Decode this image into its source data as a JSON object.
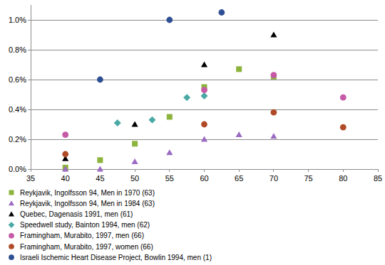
{
  "chart_data": {
    "type": "scatter",
    "xlim": [
      35,
      85
    ],
    "xticks": [
      35,
      40,
      45,
      50,
      55,
      60,
      65,
      70,
      75,
      80,
      85
    ],
    "ylim": [
      0,
      1.1
    ],
    "yticks": [
      {
        "value": 0,
        "label": "0.0%"
      },
      {
        "value": 0.2,
        "label": "0.2%"
      },
      {
        "value": 0.4,
        "label": "0.4%"
      },
      {
        "value": 0.6,
        "label": "0.6%"
      },
      {
        "value": 0.8,
        "label": "0.8%"
      },
      {
        "value": 1.0,
        "label": "1.0%"
      }
    ],
    "grid": true,
    "legend": "bottom",
    "series": [
      {
        "name": "Reykjavik, Ingolfsson 94, Men in 1970 (63)",
        "color": "#8cb43c",
        "marker": "square",
        "x": [
          40,
          45,
          50,
          55,
          60,
          65,
          70
        ],
        "values": [
          0.01,
          0.06,
          0.17,
          0.35,
          0.55,
          0.67,
          0.62
        ]
      },
      {
        "name": "Reykjavik, Ingolfsson 94, Men in 1984 (63)",
        "color": "#9b6bc4",
        "marker": "triangle",
        "x": [
          40,
          45,
          50,
          55,
          60,
          65,
          70
        ],
        "values": [
          0.0,
          0.0,
          0.05,
          0.11,
          0.2,
          0.23,
          0.22
        ]
      },
      {
        "name": "Quebec, Dagenasis 1991, men (61)",
        "color": "#000000",
        "marker": "triangle",
        "x": [
          40,
          50,
          60,
          70
        ],
        "values": [
          0.07,
          0.3,
          0.7,
          0.9
        ]
      },
      {
        "name": "Speedwell study, Bainton 1994, men (62)",
        "color": "#4aa9a4",
        "marker": "diamond",
        "x": [
          47.5,
          52.5,
          57.5,
          60
        ],
        "values": [
          0.31,
          0.33,
          0.48,
          0.49
        ]
      },
      {
        "name": "Framingham, Murabito, 1997, men (66)",
        "color": "#c65aa6",
        "marker": "circle",
        "x": [
          40,
          60,
          70,
          80
        ],
        "values": [
          0.23,
          0.53,
          0.63,
          0.48
        ]
      },
      {
        "name": "Framingham, Murabito, 1997, women (66)",
        "color": "#b04a28",
        "marker": "circle",
        "x": [
          40,
          60,
          70,
          80
        ],
        "values": [
          0.1,
          0.3,
          0.38,
          0.28
        ]
      },
      {
        "name": "Israeli Ischemic Heart Disease Project, Bowlin 1994, men (1)",
        "color": "#2e4f94",
        "marker": "circle",
        "x": [
          45,
          55,
          62.5
        ],
        "values": [
          0.6,
          1.0,
          1.05
        ]
      }
    ]
  }
}
